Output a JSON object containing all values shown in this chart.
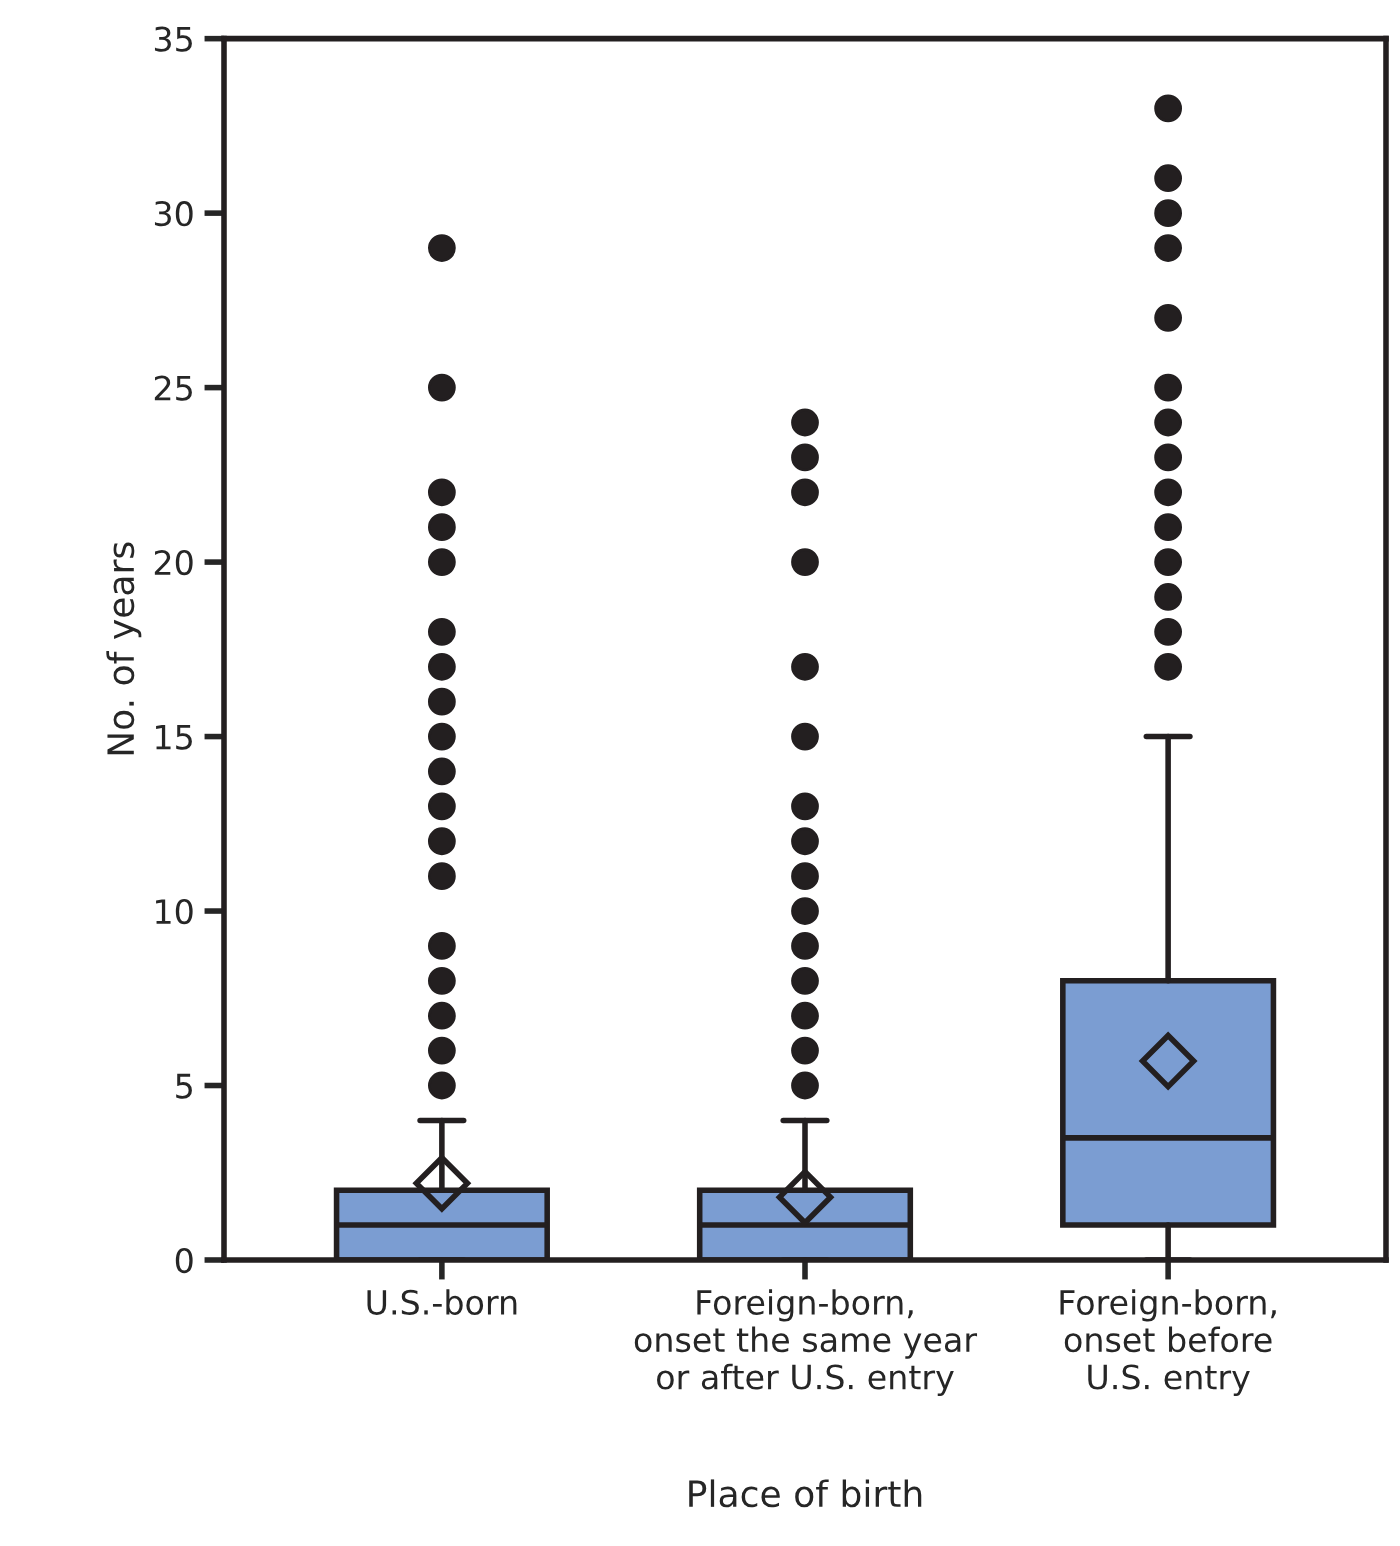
{
  "chart_data": {
    "type": "box",
    "xlabel": "Place of birth",
    "ylabel": "No. of years",
    "categories": [
      "U.S.-born",
      "Foreign-born,\nonset the same year\nor after U.S. entry",
      "Foreign-born,\nonset before\nU.S. entry"
    ],
    "series": [
      {
        "color": "#7b9dd2",
        "boxes": [
          {
            "low": 0,
            "q1": 0,
            "median": 1,
            "q3": 2,
            "high": 4,
            "mean": 2.2,
            "outliers": [
              5,
              6,
              7,
              8,
              9,
              11,
              12,
              13,
              14,
              15,
              16,
              17,
              18,
              20,
              21,
              22,
              25,
              29
            ]
          },
          {
            "low": 0,
            "q1": 0,
            "median": 1,
            "q3": 2,
            "high": 4,
            "mean": 1.8,
            "outliers": [
              5,
              6,
              7,
              8,
              9,
              10,
              11,
              12,
              13,
              15,
              17,
              20,
              22,
              23,
              24
            ]
          },
          {
            "low": 0,
            "q1": 1,
            "median": 3.5,
            "q3": 8,
            "high": 15,
            "mean": 5.7,
            "outliers": [
              17,
              18,
              19,
              20,
              21,
              22,
              23,
              24,
              25,
              27,
              29,
              30,
              31,
              33
            ]
          }
        ]
      }
    ],
    "ylim": [
      0,
      35
    ],
    "yticks": [
      0,
      5,
      10,
      15,
      20,
      25,
      30,
      35
    ],
    "grid": false,
    "legend": false
  }
}
